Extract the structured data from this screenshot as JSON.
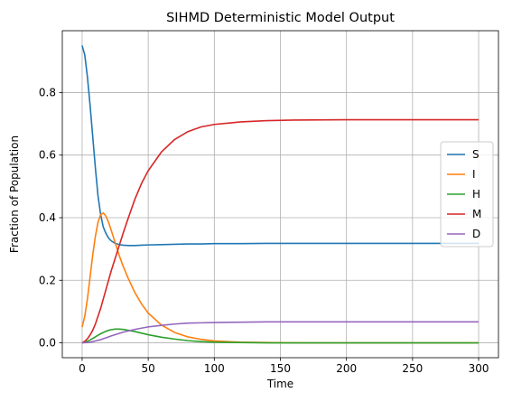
{
  "chart_data": {
    "type": "line",
    "title": "SIHMD Deterministic Model Output",
    "xlabel": "Time",
    "ylabel": "Fraction of Population",
    "xlim": [
      -15,
      315
    ],
    "ylim": [
      -0.0475,
      0.9975
    ],
    "xticks": [
      0,
      50,
      100,
      150,
      200,
      250,
      300
    ],
    "yticks": [
      0.0,
      0.2,
      0.4,
      0.6,
      0.8
    ],
    "xtick_labels": [
      "0",
      "50",
      "100",
      "150",
      "200",
      "250",
      "300"
    ],
    "ytick_labels": [
      "0.0",
      "0.2",
      "0.4",
      "0.6",
      "0.8"
    ],
    "grid": true,
    "legend_position": "center-right",
    "x": [
      0,
      2,
      4,
      6,
      8,
      10,
      12,
      14,
      16,
      18,
      20,
      22,
      25,
      28,
      31,
      35,
      40,
      45,
      50,
      60,
      70,
      80,
      90,
      100,
      120,
      140,
      160,
      200,
      250,
      300
    ],
    "series": [
      {
        "name": "S",
        "color": "#1f77b4",
        "values": [
          0.95,
          0.92,
          0.85,
          0.76,
          0.66,
          0.56,
          0.47,
          0.41,
          0.37,
          0.35,
          0.335,
          0.326,
          0.318,
          0.314,
          0.312,
          0.311,
          0.311,
          0.312,
          0.313,
          0.314,
          0.315,
          0.316,
          0.316,
          0.317,
          0.317,
          0.318,
          0.318,
          0.318,
          0.318,
          0.318
        ]
      },
      {
        "name": "I",
        "color": "#ff7f0e",
        "values": [
          0.05,
          0.085,
          0.14,
          0.21,
          0.28,
          0.34,
          0.385,
          0.41,
          0.415,
          0.405,
          0.385,
          0.36,
          0.32,
          0.28,
          0.245,
          0.205,
          0.16,
          0.124,
          0.095,
          0.057,
          0.033,
          0.019,
          0.011,
          0.006,
          0.002,
          0.001,
          0.0,
          0.0,
          0.0,
          0.0
        ]
      },
      {
        "name": "H",
        "color": "#2ca02c",
        "values": [
          0.0,
          0.002,
          0.005,
          0.009,
          0.014,
          0.019,
          0.024,
          0.029,
          0.033,
          0.037,
          0.04,
          0.042,
          0.044,
          0.044,
          0.043,
          0.04,
          0.036,
          0.031,
          0.026,
          0.018,
          0.012,
          0.007,
          0.004,
          0.002,
          0.001,
          0.0,
          0.0,
          0.0,
          0.0,
          0.0
        ]
      },
      {
        "name": "M",
        "color": "#d62728",
        "values": [
          0.0,
          0.005,
          0.013,
          0.025,
          0.04,
          0.06,
          0.085,
          0.11,
          0.14,
          0.17,
          0.2,
          0.23,
          0.27,
          0.31,
          0.35,
          0.4,
          0.46,
          0.51,
          0.55,
          0.61,
          0.65,
          0.675,
          0.69,
          0.698,
          0.706,
          0.71,
          0.712,
          0.713,
          0.713,
          0.713
        ]
      },
      {
        "name": "D",
        "color": "#9467bd",
        "values": [
          0.0,
          0.0005,
          0.001,
          0.002,
          0.004,
          0.006,
          0.008,
          0.01,
          0.013,
          0.016,
          0.019,
          0.022,
          0.026,
          0.03,
          0.034,
          0.038,
          0.043,
          0.047,
          0.051,
          0.056,
          0.06,
          0.063,
          0.064,
          0.065,
          0.066,
          0.067,
          0.067,
          0.067,
          0.067,
          0.067
        ]
      }
    ]
  }
}
